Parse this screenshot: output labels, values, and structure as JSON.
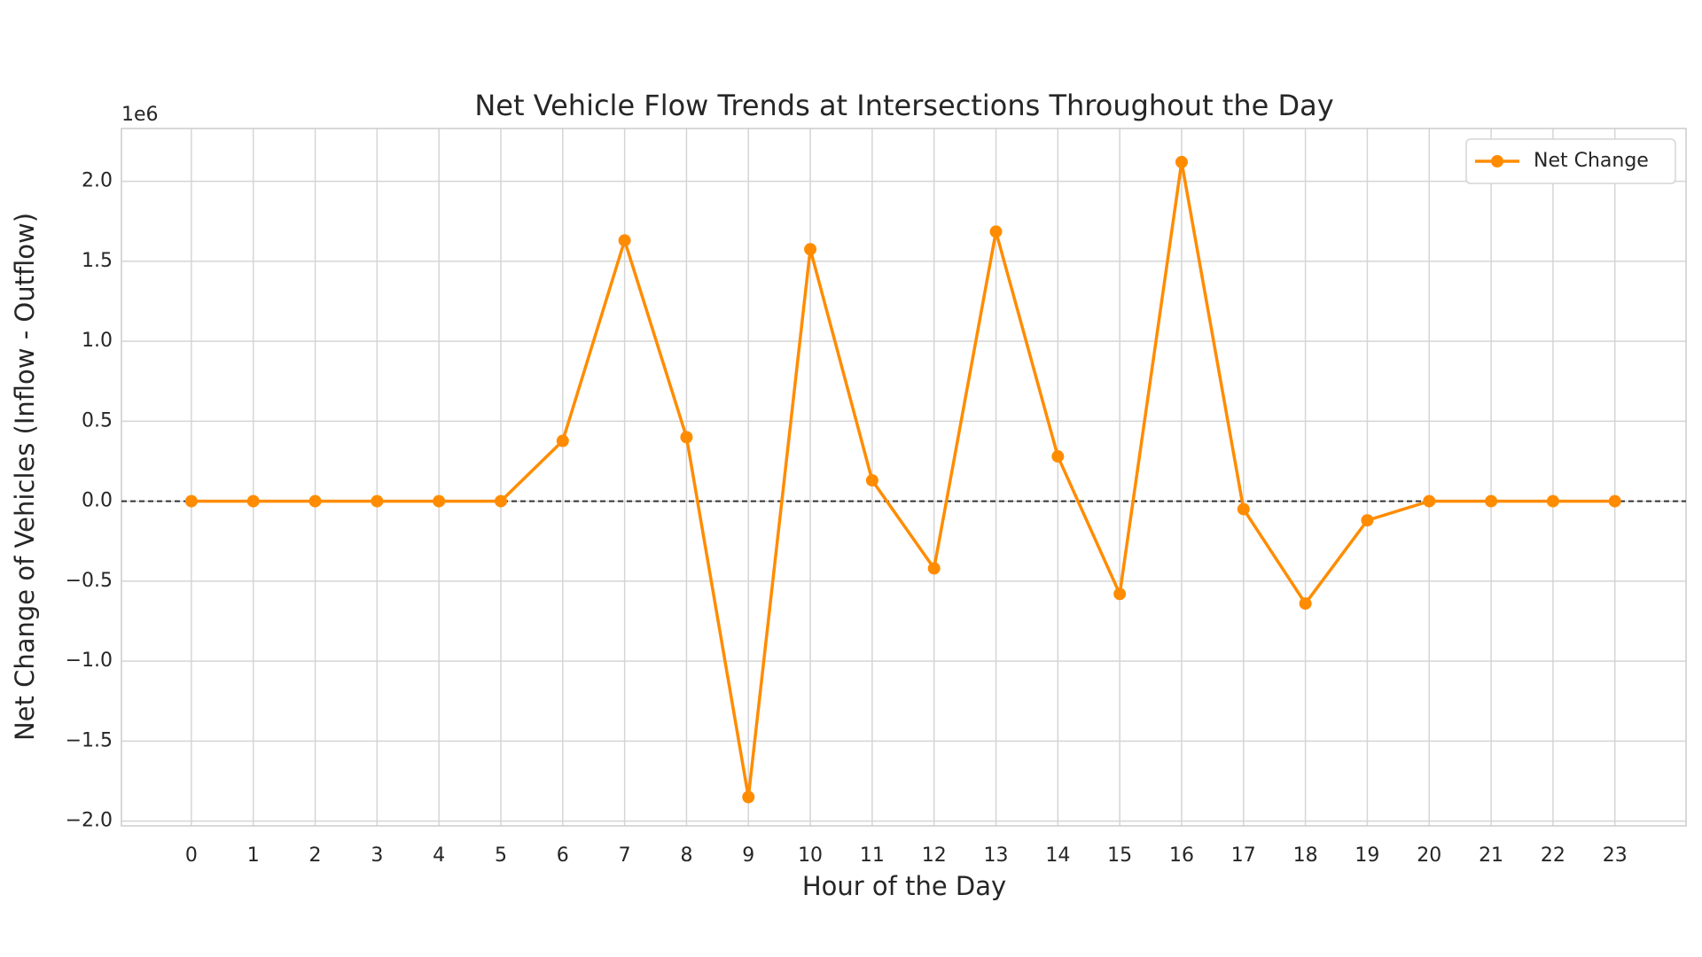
{
  "chart_data": {
    "type": "line",
    "title": "Net Vehicle Flow Trends at Intersections Throughout the Day",
    "xlabel": "Hour of the Day",
    "ylabel": "Net Change of Vehicles (Inflow - Outflow)",
    "y_offset_label": "1e6",
    "x": [
      0,
      1,
      2,
      3,
      4,
      5,
      6,
      7,
      8,
      9,
      10,
      11,
      12,
      13,
      14,
      15,
      16,
      17,
      18,
      19,
      20,
      21,
      22,
      23
    ],
    "series": [
      {
        "name": "Net Change",
        "color": "#ff8c00",
        "values": [
          0,
          0,
          0,
          0,
          0,
          0,
          0.377,
          1.63,
          0.4,
          -1.85,
          1.575,
          0.13,
          -0.42,
          1.685,
          0.28,
          -0.58,
          2.12,
          -0.05,
          -0.64,
          -0.12,
          0,
          0,
          0,
          0
        ]
      }
    ],
    "xlim": [
      -1.13,
      24.15
    ],
    "ylim": [
      -2.03,
      2.33
    ],
    "xticks": [
      0,
      1,
      2,
      3,
      4,
      5,
      6,
      7,
      8,
      9,
      10,
      11,
      12,
      13,
      14,
      15,
      16,
      17,
      18,
      19,
      20,
      21,
      22,
      23
    ],
    "yticks": [
      {
        "value": -2,
        "label": "−2.0"
      },
      {
        "value": -1.5,
        "label": "−1.5"
      },
      {
        "value": -1,
        "label": "−1.0"
      },
      {
        "value": -0.5,
        "label": "−0.5"
      },
      {
        "value": 0,
        "label": "0.0"
      },
      {
        "value": 0.5,
        "label": "0.5"
      },
      {
        "value": 1,
        "label": "1.0"
      },
      {
        "value": 1.5,
        "label": "1.5"
      },
      {
        "value": 2,
        "label": "2.0"
      }
    ],
    "grid": true,
    "zero_line": true,
    "legend": "upper right"
  }
}
